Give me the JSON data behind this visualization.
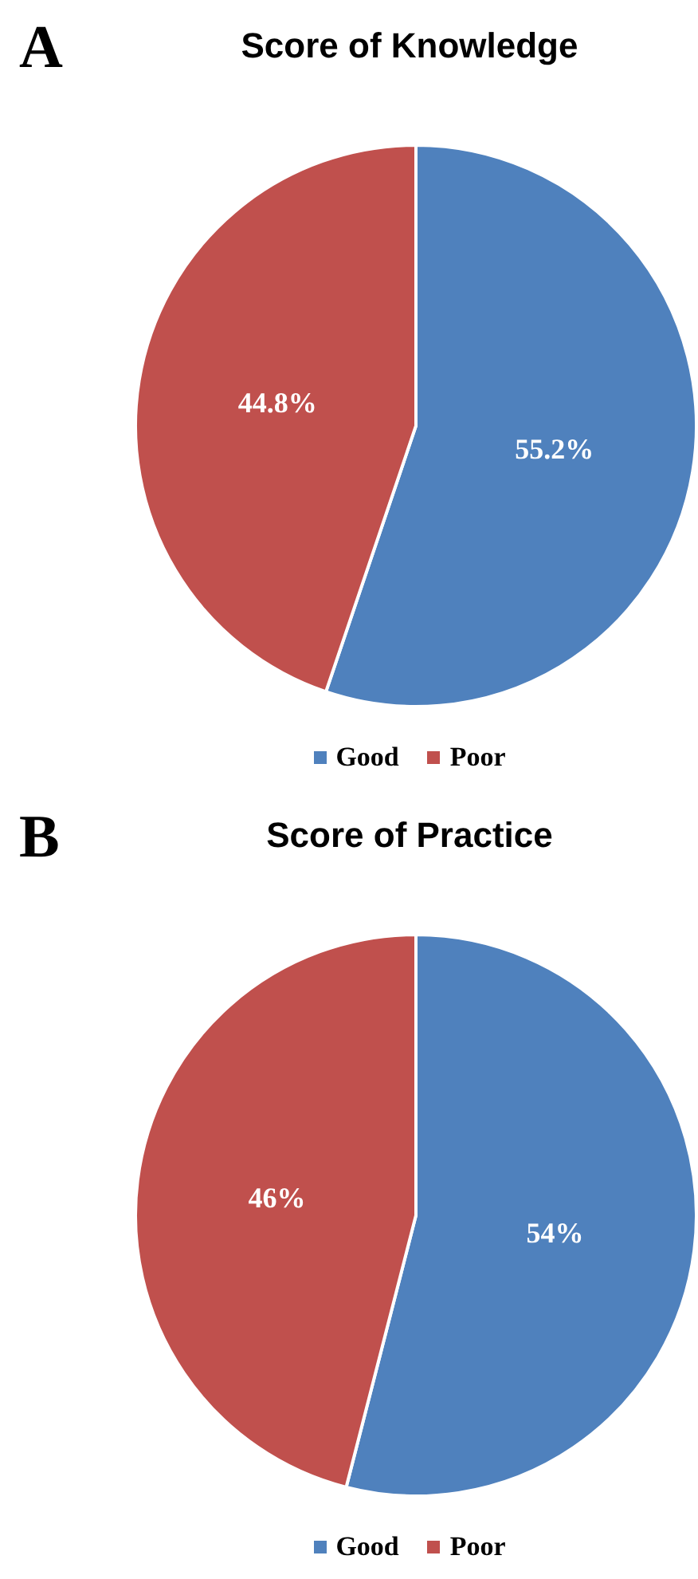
{
  "chart_data": [
    {
      "type": "pie",
      "title": "Score of Knowledge",
      "annotations": [
        "A"
      ],
      "categories": [
        "Good",
        "Poor"
      ],
      "values": [
        55.2,
        44.8
      ],
      "colors": [
        "#4f81bd",
        "#c0504d"
      ],
      "value_labels": [
        "55.2%",
        "44.8%"
      ],
      "legend": "bottom"
    },
    {
      "type": "pie",
      "title": "Score of Practice",
      "annotations": [
        "B"
      ],
      "categories": [
        "Good",
        "Poor"
      ],
      "values": [
        54,
        46
      ],
      "colors": [
        "#4f81bd",
        "#c0504d"
      ],
      "value_labels": [
        "54%",
        "46%"
      ],
      "legend": "bottom"
    }
  ]
}
